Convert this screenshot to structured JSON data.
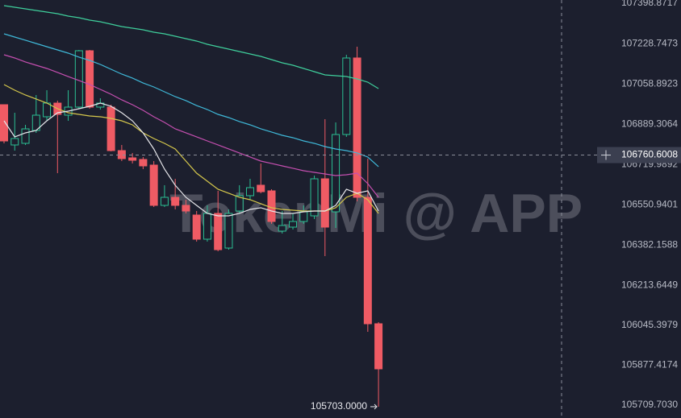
{
  "chart_data": {
    "type": "candlestick",
    "categories": [
      null,
      null,
      null,
      null,
      null,
      null,
      null,
      null,
      null,
      null,
      null,
      null,
      null,
      null,
      null,
      null,
      null,
      null,
      null,
      null,
      null,
      null,
      null,
      null,
      null,
      null,
      null,
      null,
      null,
      null,
      null,
      null,
      null,
      null,
      null,
      null
    ],
    "open": [
      106972.3,
      106803.1,
      106809.9,
      106864.0,
      106921.6,
      106979.1,
      106928.3,
      106962.2,
      107199.1,
      106962.2,
      106962.2,
      106779.4,
      106748.9,
      106742.2,
      106718.5,
      106549.2,
      106583.1,
      106549.2,
      106508.6,
      106407.0,
      106515.4,
      106369.8,
      106525.5,
      106589.9,
      106633.9,
      106610.2,
      106440.9,
      106457.8,
      106481.5,
      106505.2,
      106660.9,
      106522.1,
      106847.1,
      107168.7,
      106583.1,
      106051.6
    ],
    "high": [
      106972.3,
      106938.5,
      106887.7,
      107013.0,
      107033.3,
      106989.3,
      107033.3,
      107202.5,
      107202.5,
      106999.4,
      106972.3,
      106803.1,
      106769.3,
      106752.3,
      106735.4,
      106633.9,
      106660.9,
      106572.9,
      106525.5,
      106549.2,
      106610.2,
      106532.3,
      106633.9,
      106660.9,
      106725.3,
      106617.0,
      106525.5,
      106515.4,
      106549.2,
      106674.5,
      106911.4,
      106897.9,
      107182.2,
      107216.1,
      106745.6,
      106058.4
    ],
    "low": [
      106809.9,
      106779.4,
      106803.1,
      106853.9,
      106904.6,
      106684.6,
      106904.6,
      106955.4,
      106955.4,
      106952.0,
      106776.0,
      106735.4,
      106725.3,
      106701.6,
      106542.4,
      106542.4,
      106532.3,
      106515.4,
      106396.9,
      106396.9,
      106356.3,
      106363.0,
      106515.4,
      106572.9,
      106600.0,
      106471.6,
      106430.8,
      106447.6,
      106471.6,
      106491.7,
      106336.0,
      106454.4,
      106837.0,
      106566.1,
      106017.8,
      105703.0
    ],
    "close": [
      106820.0,
      106830.2,
      106870.8,
      106928.3,
      106979.1,
      106931.7,
      106962.2,
      107199.1,
      106962.2,
      106979.1,
      106779.4,
      106745.6,
      106738.8,
      106715.1,
      106549.2,
      106583.1,
      106549.2,
      106525.5,
      106407.0,
      106515.4,
      106363.0,
      106515.4,
      106589.9,
      106623.7,
      106606.8,
      106481.5,
      106464.6,
      106481.5,
      106522.1,
      106660.9,
      106457.8,
      106847.1,
      107168.7,
      106583.1,
      106051.6,
      105862.0
    ],
    "up_color": "#2bbf93",
    "down_color": "#ef5b64",
    "lines": [
      {
        "color": "#3fcf9c",
        "values": [
          107388.7,
          107381.9,
          107375.2,
          107368.4,
          107361.6,
          107354.9,
          107344.7,
          107337.9,
          107327.8,
          107321.0,
          107310.9,
          107300.7,
          107293.9,
          107287.2,
          107277.0,
          107270.2,
          107260.1,
          107249.9,
          107239.8,
          107226.2,
          107216.1,
          107205.9,
          107195.8,
          107185.6,
          107175.4,
          107161.9,
          107148.4,
          107138.2,
          107124.7,
          107111.1,
          107097.6,
          107094.2,
          107090.8,
          107080.7,
          107067.1,
          107040.1
        ]
      },
      {
        "color": "#3fb8d8",
        "values": [
          107270.2,
          107256.7,
          107243.2,
          107229.6,
          107216.1,
          107202.5,
          107189.0,
          107172.1,
          107158.5,
          107141.6,
          107121.3,
          107101.0,
          107084.1,
          107063.7,
          107046.8,
          107026.5,
          107006.2,
          106989.3,
          106968.9,
          106952.0,
          106931.7,
          106918.2,
          106901.3,
          106887.7,
          106870.8,
          106857.3,
          106843.7,
          106833.6,
          106820.0,
          106809.9,
          106796.3,
          106786.2,
          106779.4,
          106769.3,
          106752.3,
          106711.7
        ]
      },
      {
        "color": "#c54fb0",
        "values": [
          107182.2,
          107168.7,
          107151.8,
          107138.2,
          107124.7,
          107107.8,
          107090.8,
          107073.9,
          107057.0,
          107036.7,
          107016.4,
          106992.7,
          106972.3,
          106948.7,
          106921.6,
          106897.9,
          106870.8,
          106853.9,
          106837.0,
          106820.0,
          106803.1,
          106786.2,
          106769.3,
          106752.3,
          106735.4,
          106725.3,
          106715.1,
          106705.0,
          106694.8,
          106688.0,
          106681.2,
          106674.5,
          106677.9,
          106684.6,
          106640.6,
          106583.1
        ]
      },
      {
        "color": "#d6c84c",
        "values": [
          107057.0,
          107033.3,
          107013.0,
          106996.1,
          106979.1,
          106955.4,
          106938.5,
          106931.7,
          106925.0,
          106921.6,
          106914.8,
          106904.6,
          106887.7,
          106853.9,
          106830.2,
          106809.9,
          106786.2,
          106735.4,
          106684.6,
          106650.8,
          106616.9,
          106600.0,
          106583.1,
          106572.9,
          106556.0,
          106539.1,
          106532.3,
          106528.9,
          106525.5,
          106525.5,
          106525.5,
          106539.1,
          106583.1,
          106600.0,
          106572.9,
          106515.4
        ]
      },
      {
        "color": "#e6e6ea",
        "values": [
          106904.6,
          106837.0,
          106853.9,
          106864.0,
          106904.6,
          106938.5,
          106945.3,
          106955.4,
          106965.6,
          106979.1,
          106965.6,
          106938.5,
          106904.6,
          106853.9,
          106786.2,
          106701.6,
          106633.9,
          106583.1,
          106549.2,
          106515.4,
          106505.2,
          106505.2,
          106515.4,
          106532.3,
          106539.1,
          106525.5,
          106515.4,
          106515.4,
          106522.1,
          106525.5,
          106525.5,
          106549.2,
          106616.9,
          106600.0,
          106610.2,
          106525.5
        ]
      }
    ],
    "ylim": [
      105655.5,
      107412.4
    ],
    "yticks": [
      107398.8717,
      107228.7473,
      107058.8923,
      106889.3064,
      106719.9892,
      106550.9401,
      106382.1588,
      106213.6449,
      106045.3979,
      105877.4174,
      {
        "value": 105709.703,
        "label": "105709.7030"
      }
    ],
    "grid": false,
    "crosshair_value": 106760.6008,
    "min_label": {
      "value": 105703,
      "label": "105703.0000"
    },
    "watermark": "TokenMi @ APP"
  }
}
